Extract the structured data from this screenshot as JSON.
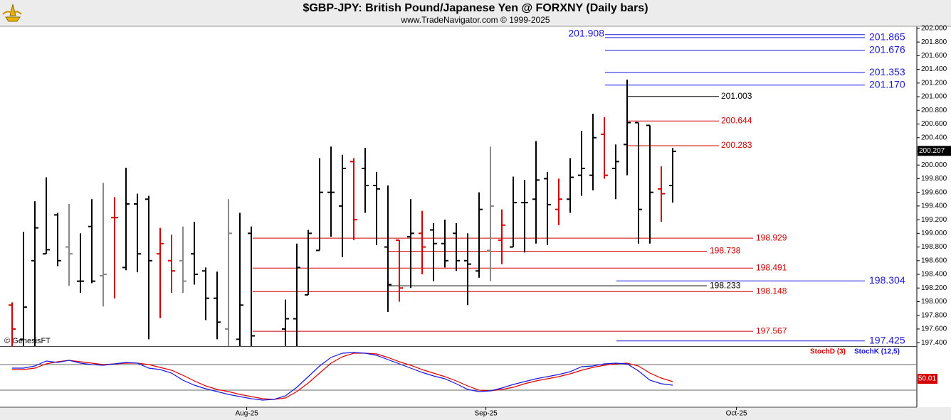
{
  "chart_data": [
    {
      "type": "ohlc",
      "title": "$GBP-JPY:  British Pound/Japanese Yen @ FORXNY  (Daily bars)",
      "subtitle": "www.TradeNavigator.com © 1999-2025",
      "watermark": "© GenesisFT",
      "open": [
        197.95,
        197.45,
        198.6,
        198.7,
        199.27,
        198.8,
        198.3,
        199.1,
        198.38,
        199.23,
        198.5,
        199.43,
        199.5,
        198.7,
        198.6,
        198.6,
        198.7,
        198.45,
        198.05,
        197.6,
        197.45,
        199.0,
        197.2,
        197.0,
        197.6,
        197.75,
        198.1,
        198.75,
        199.6,
        199.4,
        200.05,
        199.95,
        199.7,
        198.8,
        198.9,
        198.95,
        199.0,
        199.05,
        198.85,
        199.0,
        198.6,
        198.45,
        198.75,
        198.9,
        198.8,
        199.45,
        199.5,
        199.8,
        199.35,
        199.5,
        199.85,
        199.85,
        200.45,
        199.95,
        200.3,
        200.62,
        200.58,
        199.65,
        199.7
      ],
      "high": [
        197.99,
        199.02,
        199.47,
        199.82,
        199.3,
        199.43,
        199.0,
        199.5,
        199.74,
        199.53,
        199.96,
        199.58,
        199.55,
        199.08,
        198.98,
        199.1,
        199.17,
        198.5,
        198.44,
        199.5,
        199.3,
        199.1,
        197.3,
        197.3,
        198.03,
        198.85,
        199.05,
        200.1,
        200.27,
        200.15,
        200.1,
        200.25,
        199.9,
        199.7,
        198.9,
        199.5,
        199.33,
        199.15,
        199.2,
        199.15,
        199.0,
        199.6,
        200.27,
        199.35,
        199.83,
        199.78,
        200.35,
        199.9,
        199.8,
        200.1,
        200.5,
        200.75,
        200.7,
        200.3,
        201.25,
        200.62,
        200.58,
        199.98,
        200.25
      ],
      "low": [
        197.2,
        197.2,
        197.2,
        198.7,
        198.52,
        198.23,
        198.13,
        198.27,
        197.93,
        198.05,
        198.46,
        198.43,
        197.45,
        197.76,
        198.13,
        198.13,
        198.25,
        197.73,
        197.45,
        197.2,
        197.2,
        197.2,
        196.9,
        196.8,
        197.2,
        197.2,
        198.1,
        198.75,
        198.95,
        198.65,
        198.9,
        199.3,
        198.83,
        197.85,
        198.0,
        198.2,
        198.4,
        198.3,
        198.5,
        198.45,
        197.95,
        198.35,
        198.3,
        198.55,
        198.8,
        198.72,
        198.85,
        198.83,
        199.12,
        199.3,
        199.55,
        199.63,
        199.8,
        199.5,
        199.85,
        198.85,
        198.85,
        199.17,
        199.45
      ],
      "close": [
        197.6,
        197.92,
        199.08,
        198.76,
        198.6,
        198.7,
        198.3,
        198.3,
        198.4,
        199.23,
        199.43,
        198.7,
        198.6,
        198.85,
        198.45,
        198.3,
        198.4,
        198.05,
        197.7,
        199.0,
        197.95,
        197.5,
        197.0,
        197.2,
        197.75,
        198.5,
        199.0,
        199.6,
        199.6,
        199.95,
        199.2,
        199.7,
        199.65,
        198.25,
        198.2,
        199.0,
        198.8,
        198.85,
        198.6,
        198.6,
        198.55,
        199.35,
        199.4,
        199.12,
        199.45,
        199.45,
        199.78,
        199.42,
        199.5,
        199.82,
        199.95,
        200.4,
        199.85,
        200.05,
        200.62,
        199.35,
        199.6,
        199.58,
        200.2
      ],
      "bar_colors": [
        "#d40000",
        "#000000",
        "#000000",
        "#000000",
        "#000000",
        "#888888",
        "#000000",
        "#000000",
        "#888888",
        "#d40000",
        "#000000",
        "#000000",
        "#000000",
        "#d40000",
        "#d40000",
        "#888888",
        "#000000",
        "#000000",
        "#000000",
        "#888888",
        "#000000",
        "#000000",
        "#000000",
        "#000000",
        "#000000",
        "#000000",
        "#000000",
        "#000000",
        "#000000",
        "#000000",
        "#d40000",
        "#000000",
        "#000000",
        "#000000",
        "#d40000",
        "#000000",
        "#d40000",
        "#000000",
        "#000000",
        "#000000",
        "#000000",
        "#000000",
        "#888888",
        "#d40000",
        "#000000",
        "#000000",
        "#000000",
        "#000000",
        "#d40000",
        "#000000",
        "#000000",
        "#000000",
        "#d40000",
        "#000000",
        "#000000",
        "#000000",
        "#000000",
        "#d40000",
        "#000000"
      ],
      "ylim": [
        197.35,
        202.03
      ],
      "yticks": [
        {
          "value": 202.0,
          "label": "202.000"
        },
        {
          "value": 201.8,
          "label": "201.800"
        },
        {
          "value": 201.6,
          "label": "201.600"
        },
        {
          "value": 201.4,
          "label": "201.400"
        },
        {
          "value": 201.2,
          "label": "201.200"
        },
        {
          "value": 201.0,
          "label": "201.000"
        },
        {
          "value": 200.8,
          "label": "200.800"
        },
        {
          "value": 200.6,
          "label": "200.600"
        },
        {
          "value": 200.4,
          "label": "200.400"
        },
        {
          "value": 200.2,
          "label": "200.200"
        },
        {
          "value": 200.0,
          "label": "200.000"
        },
        {
          "value": 199.8,
          "label": "199.800"
        },
        {
          "value": 199.6,
          "label": "199.600"
        },
        {
          "value": 199.4,
          "label": "199.400"
        },
        {
          "value": 199.2,
          "label": "199.200"
        },
        {
          "value": 199.0,
          "label": "199.000"
        },
        {
          "value": 198.8,
          "label": "198.800"
        },
        {
          "value": 198.6,
          "label": "198.600"
        },
        {
          "value": 198.4,
          "label": "198.400"
        },
        {
          "value": 198.2,
          "label": "198.200"
        },
        {
          "value": 198.0,
          "label": "198.000"
        },
        {
          "value": 197.8,
          "label": "197.800"
        },
        {
          "value": 197.6,
          "label": "197.600"
        },
        {
          "value": 197.4,
          "label": "197.400"
        }
      ],
      "xticks": [
        {
          "value": 20.6,
          "label": "Aug-25"
        },
        {
          "value": 41.6,
          "label": "Sep-25"
        },
        {
          "value": 63.6,
          "label": "Oct-25"
        }
      ],
      "last_price": 200.207,
      "levels": [
        {
          "value": 201.908,
          "color": "#1a1ae0"
        },
        {
          "value": 201.865,
          "color": "#1a1ae0"
        },
        {
          "value": 201.676,
          "color": "#1a1ae0"
        },
        {
          "value": 201.353,
          "color": "#1a1ae0"
        },
        {
          "value": 201.17,
          "label": "201.170",
          "color": "#1a1ae0"
        },
        {
          "value": 201.003,
          "color": "#000000"
        },
        {
          "value": 200.644,
          "color": "#d40000"
        },
        {
          "value": 200.283,
          "color": "#d40000"
        },
        {
          "value": 198.929,
          "color": "#d40000"
        },
        {
          "value": 198.738,
          "color": "#d40000"
        },
        {
          "value": 198.491,
          "color": "#d40000"
        },
        {
          "value": 198.304,
          "color": "#1a1ae0"
        },
        {
          "value": 198.233,
          "color": "#000000"
        },
        {
          "value": 198.148,
          "color": "#d40000"
        },
        {
          "value": 197.567,
          "color": "#d40000"
        },
        {
          "value": 197.425,
          "color": "#1a1ae0"
        }
      ]
    },
    {
      "type": "line",
      "series": [
        {
          "name": "StochD (3)",
          "color": "#e00000",
          "values": [
            66.25,
            66.25,
            68.75,
            76.25,
            80,
            82.5,
            80,
            77.5,
            75,
            76.25,
            77.5,
            77.5,
            75,
            70,
            65,
            56.25,
            46.25,
            37.5,
            31.25,
            27.5,
            22.5,
            18.75,
            15,
            13.75,
            16.25,
            27.5,
            42.5,
            60,
            77.5,
            88.75,
            95,
            95,
            93.75,
            87.5,
            80,
            73.75,
            66.25,
            60,
            53.75,
            46.25,
            37.5,
            30,
            28.75,
            31.25,
            35,
            41.25,
            46.25,
            50,
            53.75,
            58.75,
            65,
            70,
            73.75,
            76.25,
            77.5,
            72.5,
            60,
            51.25,
            45
          ]
        },
        {
          "name": "StochK (12,5)",
          "color": "#1a1ae0",
          "values": [
            68.75,
            68.75,
            72.5,
            81.25,
            78.75,
            82.5,
            77.5,
            75,
            73.75,
            76.25,
            78.75,
            77.5,
            68.75,
            66.25,
            60,
            47.5,
            38.75,
            32.5,
            27.5,
            22.5,
            18.75,
            15,
            12.5,
            13.75,
            20,
            35,
            53.75,
            72.5,
            87.5,
            95,
            96.25,
            95,
            91.25,
            83.75,
            76.25,
            68.75,
            61.25,
            55,
            50,
            41.25,
            31.25,
            27.5,
            28.75,
            33.75,
            40,
            45,
            50,
            53.75,
            57.5,
            62.5,
            71.25,
            72.5,
            76.25,
            77.5,
            76.25,
            63.75,
            47.5,
            41.25,
            38.75
          ]
        }
      ],
      "ylim": [
        0,
        100
      ],
      "ref_lines": [
        75,
        30
      ],
      "last_value": 50.01
    }
  ]
}
